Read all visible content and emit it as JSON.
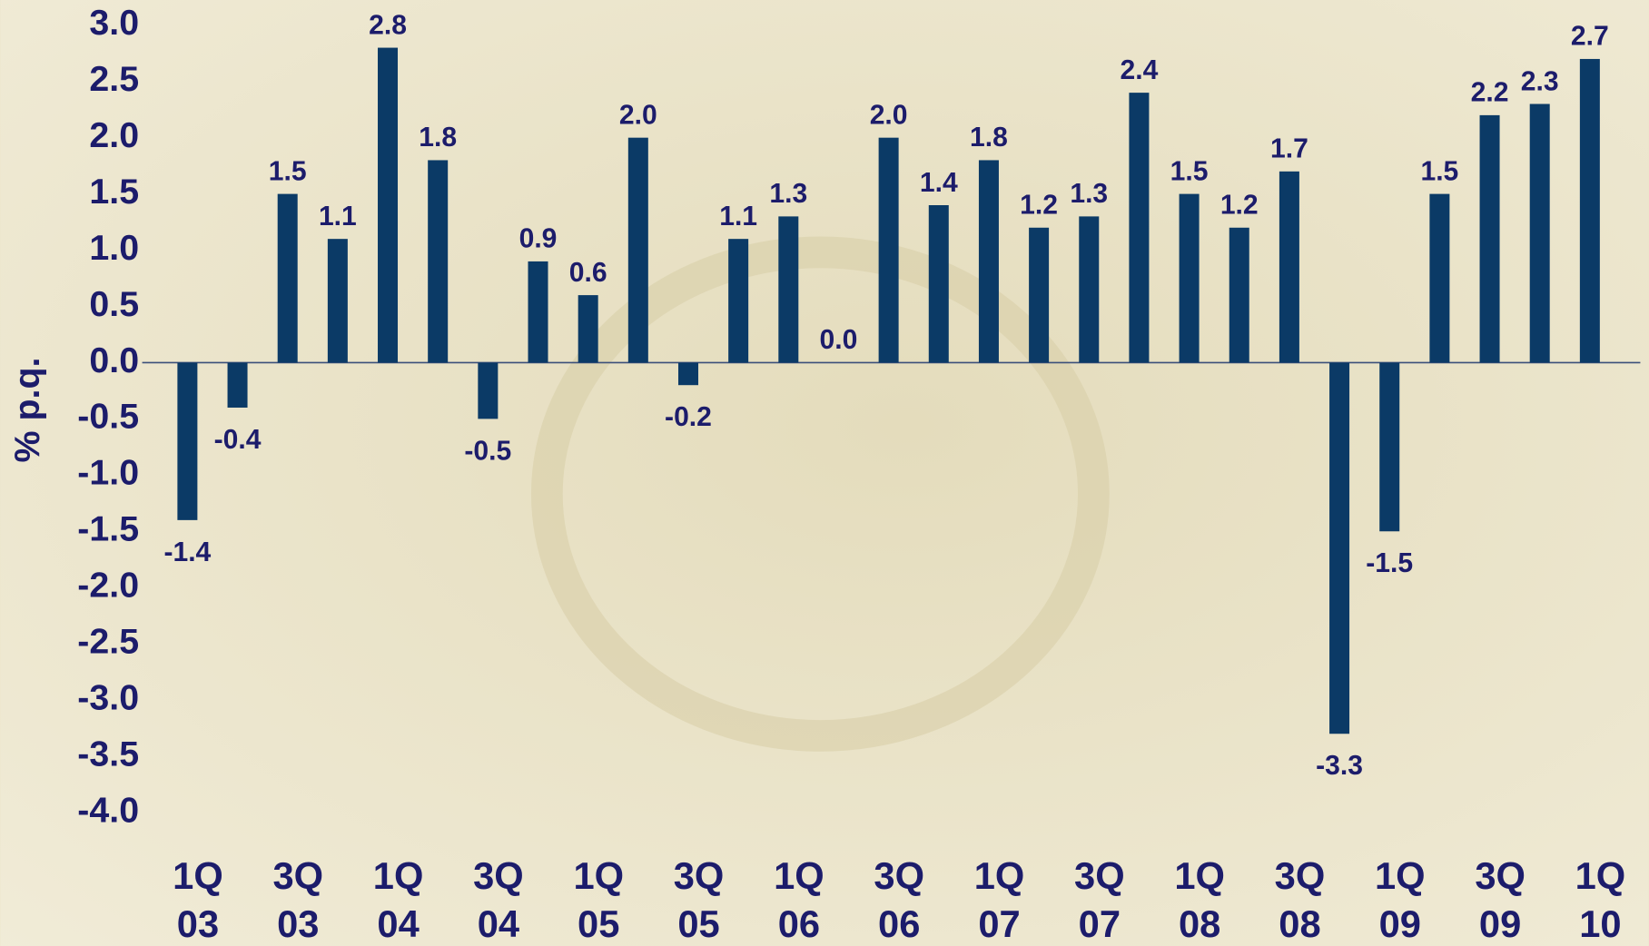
{
  "chart_data": {
    "type": "bar",
    "y_label": "% p.q.",
    "categories": [
      "1Q 03",
      null,
      "3Q 03",
      null,
      "1Q 04",
      null,
      "3Q 04",
      null,
      "1Q 05",
      null,
      "3Q 05",
      null,
      "1Q 06",
      null,
      "3Q 06",
      null,
      "1Q 07",
      null,
      "3Q 07",
      null,
      "1Q 08",
      null,
      "3Q 08",
      null,
      "1Q 09",
      null,
      "3Q 09",
      null,
      "1Q 10"
    ],
    "values": [
      -1.4,
      -0.4,
      1.5,
      1.1,
      2.8,
      1.8,
      -0.5,
      0.9,
      0.6,
      2.0,
      -0.2,
      1.1,
      1.3,
      0.0,
      2.0,
      1.4,
      1.8,
      1.2,
      1.3,
      2.4,
      1.5,
      1.2,
      1.7,
      -3.3,
      -1.5,
      1.5,
      2.2,
      2.3,
      2.7
    ],
    "value_labels": [
      "-1.4",
      "-0.4",
      "1.5",
      "1.1",
      "2.8",
      "1.8",
      "-0.5",
      "0.9",
      "0.6",
      "2.0",
      "-0.2",
      "1.1",
      "1.3",
      "0.0",
      "2.0",
      "1.4",
      "1.8",
      "1.2",
      "1.3",
      "2.4",
      "1.5",
      "1.2",
      "1.7",
      "-3.3",
      "-1.5",
      "1.5",
      "2.2",
      "2.3",
      "2.7"
    ],
    "color": "#0b3a66",
    "ylim": [
      -4,
      3
    ],
    "yticks": [
      {
        "value": -4,
        "label": "-4.0"
      },
      -3.5,
      {
        "value": -3,
        "label": "-3.0"
      },
      -2.5,
      {
        "value": -2,
        "label": "-2.0"
      },
      -1.5,
      {
        "value": -1,
        "label": "-1.0"
      },
      -0.5,
      {
        "value": 0,
        "label": "0.0"
      },
      0.5,
      {
        "value": 1,
        "label": "1.0"
      },
      1.5,
      {
        "value": 2,
        "label": "2.0"
      },
      2.5,
      {
        "value": 3,
        "label": "3.0"
      }
    ]
  }
}
